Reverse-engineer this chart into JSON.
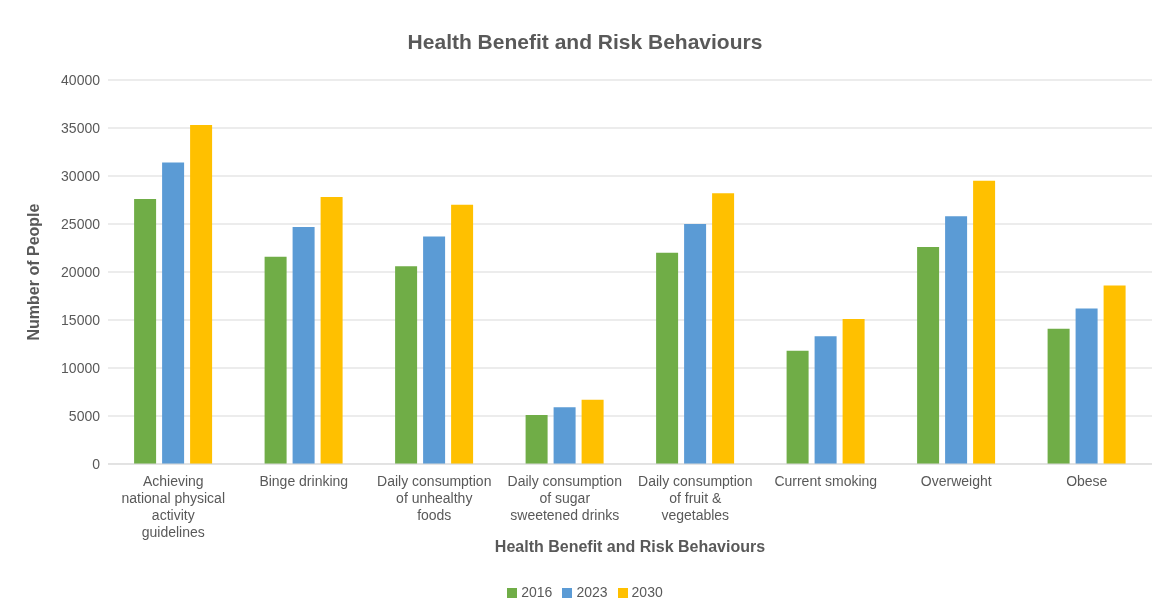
{
  "chart_data": {
    "type": "bar",
    "title": "Health Benefit and Risk Behaviours",
    "xlabel": "Health Benefit and Risk Behaviours",
    "ylabel": "Number of People",
    "categories": [
      "Achieving national physical activity guidelines",
      "Binge drinking",
      "Daily consumption of unhealthy foods",
      "Daily consumption of sugar sweetened drinks",
      "Daily consumption of fruit & vegetables",
      "Current smoking",
      "Overweight",
      "Obese"
    ],
    "series": [
      {
        "name": "2016",
        "color": "#70ad47",
        "values": [
          27600,
          21600,
          20600,
          5100,
          22000,
          11800,
          22600,
          14100
        ]
      },
      {
        "name": "2023",
        "color": "#5b9bd5",
        "values": [
          31400,
          24700,
          23700,
          5900,
          25000,
          13300,
          25800,
          16200
        ]
      },
      {
        "name": "2030",
        "color": "#ffc000",
        "values": [
          35300,
          27800,
          27000,
          6700,
          28200,
          15100,
          29500,
          18600
        ]
      }
    ],
    "ylim": [
      0,
      40000
    ],
    "yticks": [
      0,
      5000,
      10000,
      15000,
      20000,
      25000,
      30000,
      35000,
      40000
    ],
    "grid": "y",
    "legend": "bottom"
  }
}
